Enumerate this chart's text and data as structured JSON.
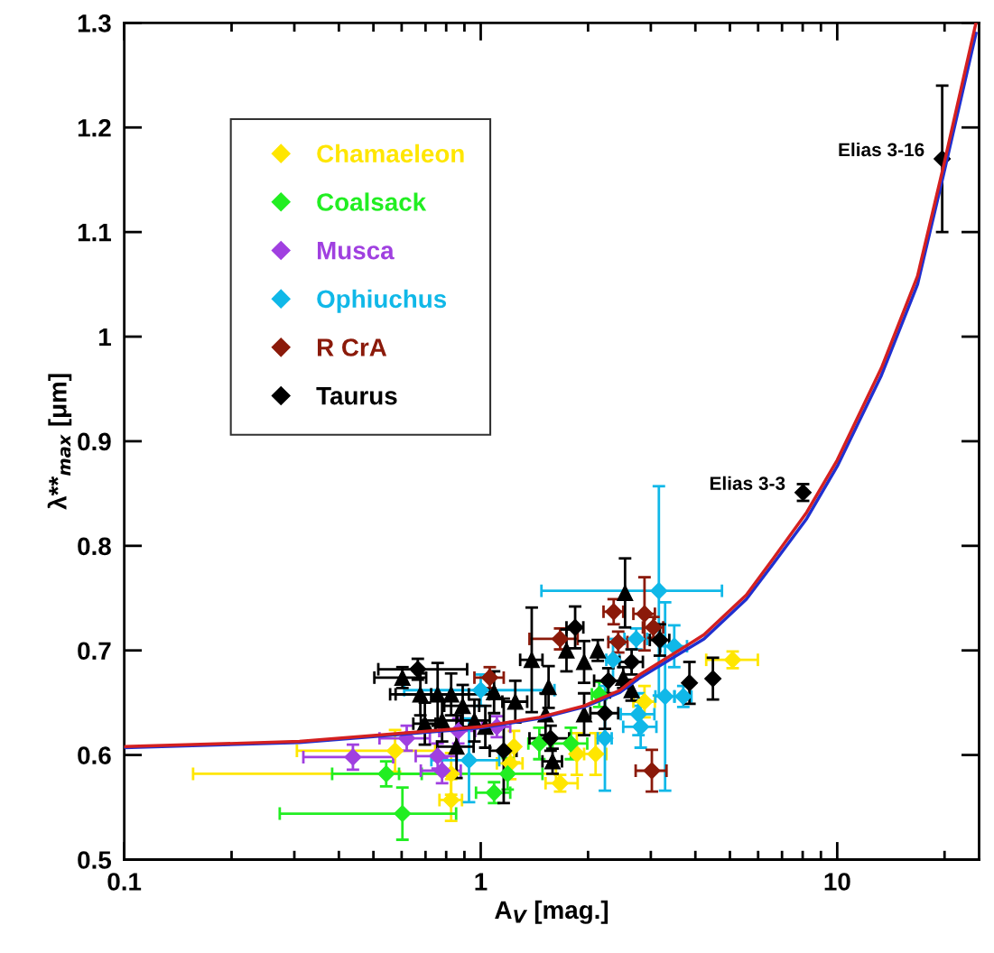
{
  "chart_data": {
    "type": "scatter",
    "xlabel": "A$_{V}$ [mag.]",
    "ylabel": "λ**$_{max}$ [μm]",
    "log": "x",
    "xlim": [
      0.1,
      25
    ],
    "ylim": [
      0.5,
      1.3
    ],
    "xticks": [
      0.1,
      1,
      10
    ],
    "yticks": [
      0.5,
      0.6,
      0.7,
      0.8,
      0.9,
      1,
      1.1,
      1.2,
      1.3
    ],
    "grid": false,
    "legend": "top left",
    "marker": "diamond",
    "annotations": [
      {
        "text": "Elias 3-16",
        "x": 19.7,
        "y": 1.17
      },
      {
        "text": "Elias 3-3",
        "x": 8.02,
        "y": 0.851
      }
    ],
    "series": [
      {
        "type": "line",
        "color": "#2030d0",
        "marker": "none",
        "x": [
          0.1,
          0.31,
          0.61,
          1.0,
          1.46,
          1.95,
          2.46,
          2.77,
          4.23,
          5.56,
          6.62,
          8.21,
          10,
          13.3,
          16.8,
          19.9,
          24.5
        ],
        "values": [
          0.607,
          0.612,
          0.62,
          0.626,
          0.635,
          0.646,
          0.66,
          0.673,
          0.711,
          0.749,
          0.783,
          0.826,
          0.876,
          0.963,
          1.05,
          1.156,
          1.29
        ]
      },
      {
        "type": "line",
        "color": "#d42020",
        "marker": "none",
        "x": [
          0.1,
          0.31,
          0.61,
          1.0,
          1.46,
          1.95,
          2.46,
          2.77,
          4.23,
          5.56,
          6.62,
          8.21,
          10,
          13.3,
          16.8,
          19.9,
          24.5
        ],
        "values": [
          0.608,
          0.613,
          0.621,
          0.627,
          0.636,
          0.647,
          0.662,
          0.676,
          0.715,
          0.753,
          0.788,
          0.832,
          0.882,
          0.97,
          1.058,
          1.164,
          1.3
        ]
      },
      {
        "name": "Chamaeleon",
        "color": "#ffe600",
        "x": [
          0.575,
          0.826,
          0.826,
          1.21,
          1.24,
          1.67,
          1.86,
          2.1,
          2.88,
          5.09
        ],
        "values": [
          0.604,
          0.582,
          0.557,
          0.592,
          0.608,
          0.573,
          0.601,
          0.601,
          0.651,
          0.691
        ],
        "errors": [
          0.02,
          0.02,
          0.02,
          0.015,
          0.015,
          0.008,
          0.02,
          0.02,
          0.015,
          0.008
        ],
        "xerrors": [
          [
            0.305,
            0.745
          ],
          [
            0.156,
            1.626
          ],
          [
            0.766,
            0.886
          ],
          [
            1.11,
            1.31
          ],
          null,
          [
            1.52,
            1.87
          ],
          null,
          [
            1.95,
            2.25
          ],
          [
            2.68,
            3.08
          ],
          [
            4.29,
            5.99
          ]
        ]
      },
      {
        "name": "Coalsack",
        "color": "#22ee22",
        "x": [
          0.543,
          0.603,
          1.09,
          1.19,
          1.46,
          1.79,
          2.15
        ],
        "values": [
          0.582,
          0.544,
          0.564,
          0.582,
          0.611,
          0.611,
          0.658
        ],
        "errors": [
          0.012,
          0.025,
          0.01,
          0.015,
          0.015,
          0.015,
          0.012
        ],
        "xerrors": [
          [
            0.383,
            0.683
          ],
          [
            0.273,
            0.853
          ],
          [
            0.97,
            1.21
          ],
          [
            0.59,
            1.49
          ],
          [
            1.36,
            1.56
          ],
          [
            1.59,
            1.99
          ],
          [
            2.05,
            2.25
          ]
        ]
      },
      {
        "name": "Musca",
        "color": "#a040e0",
        "x": [
          0.438,
          0.62,
          0.757,
          0.779,
          0.865,
          1.11
        ],
        "values": [
          0.598,
          0.616,
          0.599,
          0.585,
          0.623,
          0.627
        ],
        "errors": [
          0.012,
          0.012,
          0.012,
          0.012,
          0.012,
          0.01
        ],
        "xerrors": [
          [
            0.318,
            0.568
          ],
          [
            0.52,
            0.72
          ],
          [
            0.657,
            0.857
          ],
          [
            0.679,
            0.879
          ],
          [
            0.765,
            0.965
          ],
          [
            1.01,
            1.21
          ]
        ]
      },
      {
        "name": "Ophiuchus",
        "color": "#10b8e8",
        "x": [
          0.927,
          1.0,
          2.23,
          2.35,
          2.73,
          2.77,
          2.81,
          3.16,
          3.29,
          3.49,
          3.7
        ],
        "values": [
          0.595,
          0.662,
          0.616,
          0.691,
          0.711,
          0.639,
          0.627,
          0.757,
          0.656,
          0.704,
          0.656
        ],
        "errors": [
          0.04,
          0.015,
          0.05,
          0.02,
          0.01,
          0.02,
          0.02,
          0.1,
          0.09,
          0.02,
          0.01
        ],
        "xerrors": [
          [
            0.727,
            1.127
          ],
          [
            0.61,
            1.61
          ],
          [
            2.13,
            2.33
          ],
          [
            2.25,
            2.45
          ],
          [
            2.53,
            2.93
          ],
          [
            2.47,
            3.07
          ],
          [
            2.51,
            3.11
          ],
          [
            1.48,
            4.75
          ],
          [
            3.09,
            3.49
          ],
          [
            3.19,
            3.79
          ],
          [
            3.5,
            3.9
          ]
        ]
      },
      {
        "name": "R CrA",
        "color": "#8b1a0a",
        "x": [
          1.06,
          1.67,
          2.36,
          2.43,
          2.88,
          3.05,
          3.02
        ],
        "values": [
          0.674,
          0.711,
          0.737,
          0.708,
          0.735,
          0.722,
          0.585
        ],
        "errors": [
          0.01,
          0.01,
          0.012,
          0.01,
          0.035,
          0.01,
          0.02
        ],
        "xerrors": [
          [
            0.96,
            1.16
          ],
          [
            1.37,
            1.87
          ],
          [
            2.21,
            2.51
          ],
          [
            2.28,
            2.58
          ],
          [
            2.68,
            3.08
          ],
          [
            2.85,
            3.25
          ],
          [
            2.72,
            3.32
          ]
        ]
      },
      {
        "name": "Taurus",
        "color": "#000000",
        "x": [
          0.666,
          1.16,
          1.57,
          1.84,
          2.23,
          2.28,
          2.65,
          3.18,
          3.85,
          4.48,
          8.02,
          19.7
        ],
        "values": [
          0.682,
          0.604,
          0.616,
          0.722,
          0.64,
          0.671,
          0.689,
          0.71,
          0.669,
          0.673,
          0.851,
          1.17
        ],
        "errors": [
          0.01,
          0.05,
          0.012,
          0.02,
          0.015,
          0.012,
          0.012,
          0.015,
          0.02,
          0.02,
          0.008,
          0.07
        ],
        "xerrors": [
          [
            0.516,
            0.916
          ],
          [
            1.06,
            1.26
          ],
          [
            1.37,
            1.77
          ],
          [
            1.74,
            1.94
          ],
          [
            2.03,
            2.43
          ],
          [
            2.08,
            2.48
          ],
          [
            2.45,
            2.85
          ],
          [
            2.98,
            3.38
          ],
          null,
          null,
          null,
          null
        ]
      },
      {
        "color": "#000000",
        "marker": "triangle",
        "x": [
          0.603,
          0.677,
          0.757,
          0.826,
          0.697,
          0.779,
          0.855,
          0.89,
          0.96,
          2.54,
          1.39,
          1.59,
          2.13,
          1.74,
          1.95,
          2.51,
          2.65,
          1.55,
          1.25,
          1.09,
          1.95,
          1.52,
          1.03
        ],
        "values": [
          0.674,
          0.658,
          0.658,
          0.658,
          0.63,
          0.633,
          0.608,
          0.647,
          0.633,
          0.755,
          0.691,
          0.594,
          0.7,
          0.7,
          0.689,
          0.674,
          0.662,
          0.665,
          0.651,
          0.66,
          0.639,
          0.639,
          0.627
        ],
        "errors": [
          0.01,
          0.02,
          0.03,
          0.02,
          0.02,
          0.02,
          0.03,
          0.02,
          0.02,
          0.033,
          0.05,
          0.012,
          0.01,
          0.02,
          0.02,
          0.01,
          0.01,
          0.02,
          0.02,
          0.02,
          0.02,
          0.02,
          0.02
        ],
        "xerrors": [
          [
            0.503,
            0.703
          ],
          [
            0.577,
            0.827
          ],
          [
            0.557,
            1.057
          ],
          [
            0.726,
            0.926
          ],
          [
            0.647,
            0.747
          ],
          [
            0.679,
            0.879
          ],
          [
            0.755,
            0.955
          ],
          [
            0.79,
            0.99
          ],
          [
            0.86,
            1.06
          ],
          null,
          [
            1.29,
            1.49
          ],
          [
            1.49,
            1.69
          ],
          null,
          null,
          null,
          null,
          null,
          null,
          [
            1.15,
            1.35
          ],
          null,
          null,
          null,
          null
        ]
      }
    ]
  }
}
